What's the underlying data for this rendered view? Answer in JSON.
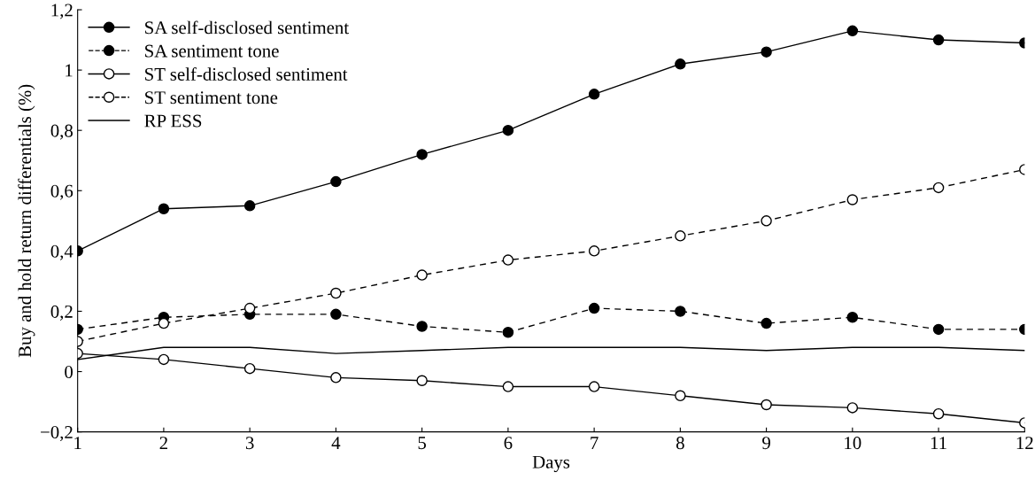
{
  "chart_data": {
    "type": "line",
    "xlabel": "Days",
    "ylabel": "Buy and hold return differentials (%)",
    "x": [
      1,
      2,
      3,
      4,
      5,
      6,
      7,
      8,
      9,
      10,
      11,
      12
    ],
    "xlim": [
      1,
      12
    ],
    "xticks": [
      1,
      2,
      3,
      4,
      5,
      6,
      7,
      8,
      9,
      10,
      11,
      12
    ],
    "ylim": [
      -0.2,
      1.2
    ],
    "yticks": [
      {
        "value": -0.2,
        "label": "−0,2"
      },
      {
        "value": 0,
        "label": "0"
      },
      {
        "value": 0.2,
        "label": "0,2"
      },
      {
        "value": 0.4,
        "label": "0,4"
      },
      {
        "value": 0.6,
        "label": "0,6"
      },
      {
        "value": 0.8,
        "label": "0,8"
      },
      {
        "value": 1,
        "label": "1"
      },
      {
        "value": 1.2,
        "label": "1,2"
      }
    ],
    "grid": false,
    "legend": "top left",
    "series": [
      {
        "name": "SA self-disclosed sentiment",
        "color": "#000000",
        "marker": "circle",
        "colors": [
          "#000000",
          "#000000",
          "#000000",
          "#000000",
          "#000000",
          "#000000",
          "#000000",
          "#000000",
          "#000000",
          "#000000",
          "#000000",
          "#000000"
        ],
        "line_style": "solid",
        "values": [
          0.4,
          0.54,
          0.55,
          0.63,
          0.72,
          0.8,
          0.92,
          1.02,
          1.06,
          1.13,
          1.1,
          1.09
        ]
      },
      {
        "name": "SA sentiment tone",
        "color": "#000000",
        "marker": "circle",
        "colors": [
          "#000000",
          "#000000",
          "#000000",
          "#000000",
          "#000000",
          "#000000",
          "#000000",
          "#000000",
          "#000000",
          "#000000",
          "#000000",
          "#000000"
        ],
        "line_style": "dashed",
        "values": [
          0.14,
          0.18,
          0.19,
          0.19,
          0.15,
          0.13,
          0.21,
          0.2,
          0.16,
          0.18,
          0.14,
          0.14
        ]
      },
      {
        "name": "ST self-disclosed sentiment",
        "color": "#000000",
        "marker": "circle",
        "colors": [
          "#ffffff",
          "#ffffff",
          "#ffffff",
          "#ffffff",
          "#ffffff",
          "#ffffff",
          "#ffffff",
          "#ffffff",
          "#ffffff",
          "#ffffff",
          "#ffffff",
          "#ffffff"
        ],
        "line_style": "solid",
        "values": [
          0.06,
          0.04,
          0.01,
          -0.02,
          -0.03,
          -0.05,
          -0.05,
          -0.08,
          -0.11,
          -0.12,
          -0.14,
          -0.17
        ]
      },
      {
        "name": "ST sentiment tone",
        "color": "#000000",
        "marker": "circle",
        "colors": [
          "#ffffff",
          "#ffffff",
          "#ffffff",
          "#ffffff",
          "#ffffff",
          "#ffffff",
          "#ffffff",
          "#ffffff",
          "#ffffff",
          "#ffffff",
          "#ffffff",
          "#ffffff"
        ],
        "line_style": "dashed",
        "values": [
          0.1,
          0.16,
          0.21,
          0.26,
          0.32,
          0.37,
          0.4,
          0.45,
          0.5,
          0.57,
          0.61,
          0.67
        ]
      },
      {
        "name": "RP ESS",
        "color": "#000000",
        "marker": "none",
        "line_style": "solid",
        "values": [
          0.04,
          0.08,
          0.08,
          0.06,
          0.07,
          0.08,
          0.08,
          0.08,
          0.07,
          0.08,
          0.08,
          0.07
        ]
      }
    ]
  }
}
